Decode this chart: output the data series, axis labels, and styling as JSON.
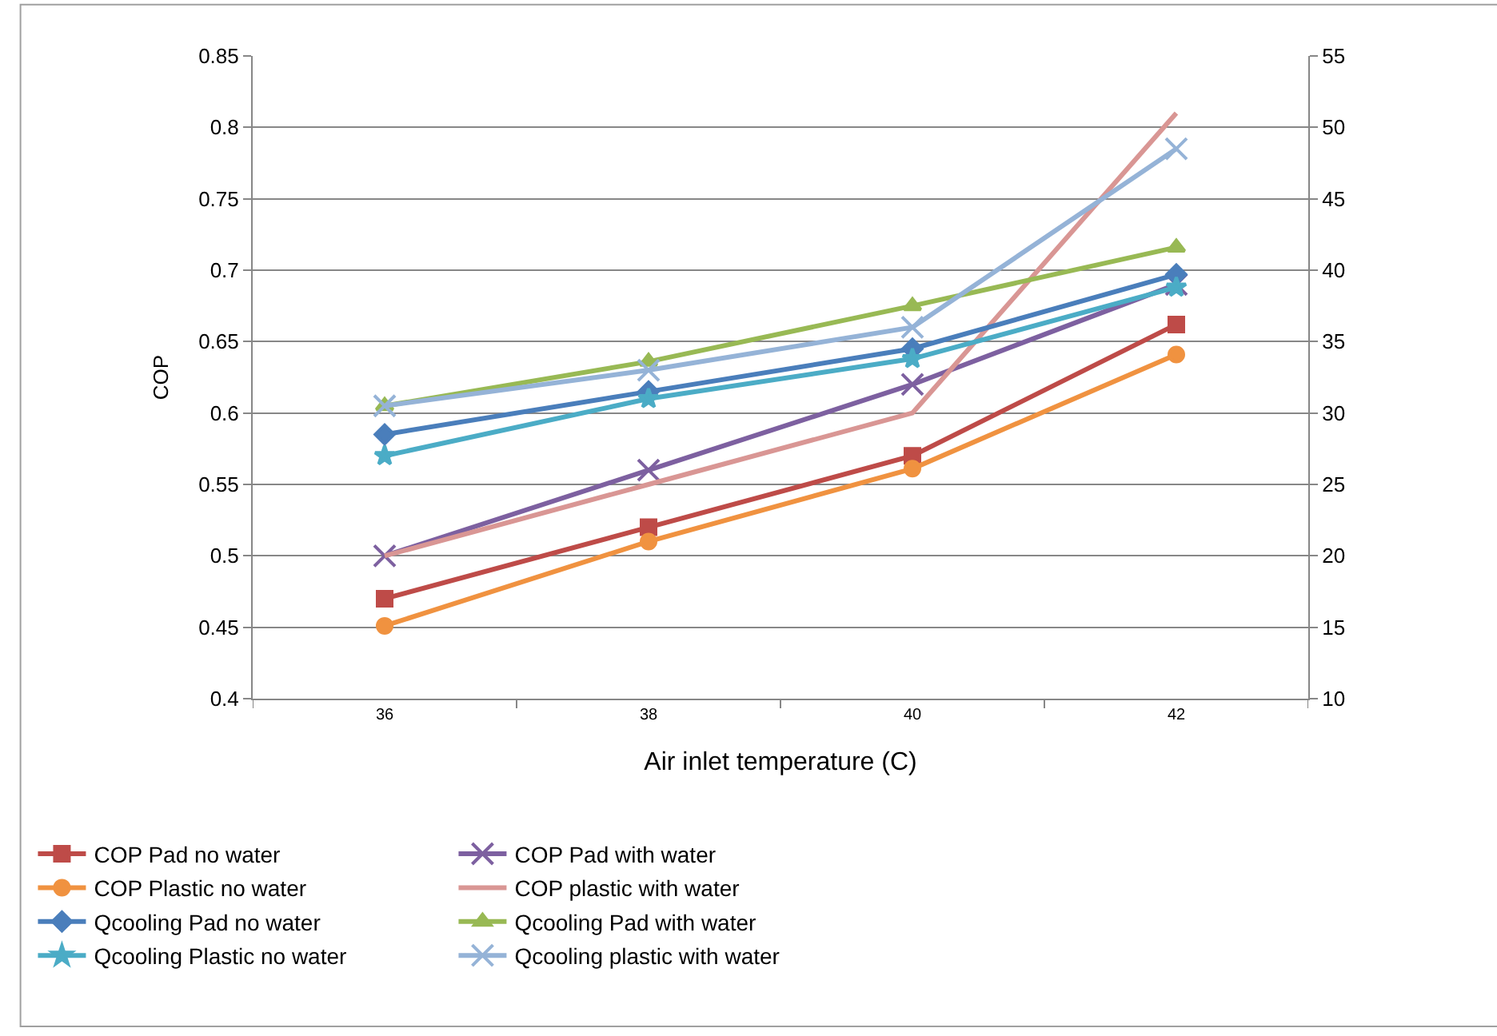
{
  "chart_data": {
    "type": "line",
    "xlabel": "Air inlet temperature (C)",
    "ylabel": "COP",
    "categories": [
      "36",
      "38",
      "40",
      "42"
    ],
    "ylim": [
      0.4,
      0.85
    ],
    "yticks": [
      0.4,
      0.45,
      0.5,
      0.55,
      0.6,
      0.65,
      0.7,
      0.75,
      0.8,
      0.85
    ],
    "y2lim": [
      10,
      55
    ],
    "y2ticks": [
      10,
      15,
      20,
      25,
      30,
      35,
      40,
      45,
      50,
      55
    ],
    "grid": "y",
    "legend": "bottom",
    "series": [
      {
        "name": "COP Pad no water",
        "color": "#be4b48",
        "marker": "square",
        "values": [
          0.47,
          0.52,
          0.57,
          0.662
        ]
      },
      {
        "name": "COP Pad with water",
        "color": "#7d60a0",
        "marker": "cross",
        "values": [
          0.5,
          0.56,
          0.62,
          0.69
        ]
      },
      {
        "name": "COP Plastic no water",
        "color": "#f09240",
        "marker": "circle",
        "values": [
          0.451,
          0.51,
          0.561,
          0.641
        ]
      },
      {
        "name": "COP plastic with water",
        "color": "#d99694",
        "marker": "none",
        "values": [
          0.5,
          0.55,
          0.6,
          0.81
        ]
      },
      {
        "name": "Qcooling Pad no water",
        "color": "#4a7ebb",
        "marker": "diamond",
        "axis": "y2",
        "values": [
          28.5,
          31.5,
          34.5,
          39.7
        ]
      },
      {
        "name": "Qcooling Pad with water",
        "color": "#98b954",
        "marker": "triangle",
        "axis": "y2",
        "values": [
          30.5,
          33.6,
          37.5,
          41.6
        ]
      },
      {
        "name": "Qcooling Plastic no water",
        "color": "#4bacc6",
        "marker": "star",
        "axis": "y2",
        "values": [
          27,
          31,
          33.8,
          38.8
        ]
      },
      {
        "name": "Qcooling plastic with water",
        "color": "#95b3d7",
        "marker": "cross",
        "axis": "y2",
        "values": [
          30.5,
          33,
          36,
          48.5
        ]
      }
    ]
  }
}
